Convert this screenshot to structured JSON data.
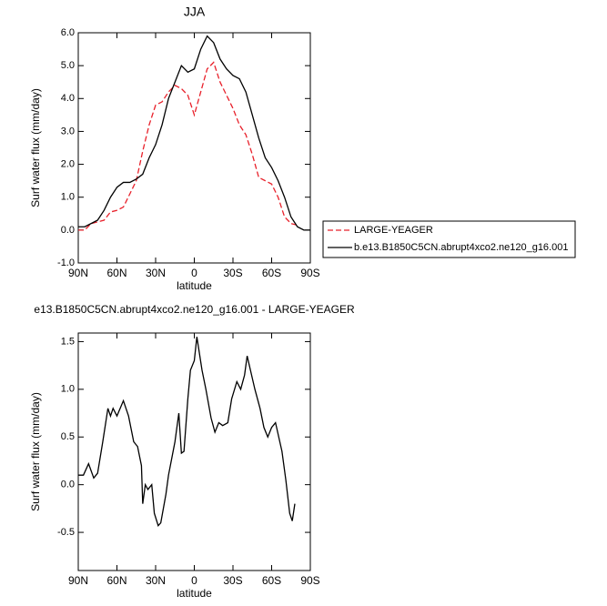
{
  "chart_data": [
    {
      "type": "line",
      "title": "JJA",
      "xlabel": "latitude",
      "ylabel": "Surf water flux (mm/day)",
      "x": [
        90,
        85,
        80,
        75,
        70,
        65,
        60,
        55,
        50,
        45,
        40,
        35,
        30,
        25,
        20,
        15,
        10,
        5,
        0,
        -5,
        -10,
        -15,
        -20,
        -25,
        -30,
        -35,
        -40,
        -45,
        -50,
        -55,
        -60,
        -65,
        -70,
        -75,
        -80,
        -85,
        -90
      ],
      "series": [
        {
          "name": "LARGE-YEAGER",
          "color": "#e8202a",
          "dashed": true,
          "values": [
            0.0,
            0.0,
            0.2,
            0.25,
            0.3,
            0.55,
            0.6,
            0.7,
            1.1,
            1.5,
            2.4,
            3.2,
            3.8,
            3.9,
            4.2,
            4.4,
            4.3,
            4.1,
            3.5,
            4.2,
            4.9,
            5.1,
            4.5,
            4.1,
            3.7,
            3.2,
            2.9,
            2.3,
            1.6,
            1.5,
            1.4,
            1.0,
            0.4,
            0.2,
            0.15,
            null,
            null
          ]
        },
        {
          "name": "b.e13.B1850C5CN.abrupt4xco2.ne120_g16.001",
          "color": "#000000",
          "dashed": false,
          "values": [
            0.1,
            0.1,
            0.2,
            0.3,
            0.6,
            1.0,
            1.3,
            1.45,
            1.45,
            1.55,
            1.7,
            2.2,
            2.6,
            3.2,
            4.0,
            4.5,
            5.0,
            4.8,
            4.9,
            5.5,
            5.9,
            5.7,
            5.2,
            4.9,
            4.7,
            4.6,
            4.2,
            3.5,
            2.8,
            2.2,
            1.9,
            1.5,
            1.0,
            0.4,
            0.1,
            0.0,
            0.0
          ]
        }
      ],
      "xlim": [
        90,
        -90
      ],
      "xticks": [
        {
          "value": 90,
          "label": "90N"
        },
        {
          "value": 60,
          "label": "60N"
        },
        {
          "value": 30,
          "label": "30N"
        },
        0,
        {
          "value": -30,
          "label": "30S"
        },
        {
          "value": -60,
          "label": "60S"
        },
        {
          "value": -90,
          "label": "90S"
        }
      ],
      "ylim": [
        -1,
        6
      ],
      "yticks": [
        {
          "value": -1,
          "label": "-1.0"
        },
        {
          "value": 0,
          "label": "0.0"
        },
        {
          "value": 1,
          "label": "1.0"
        },
        {
          "value": 2,
          "label": "2.0"
        },
        {
          "value": 3,
          "label": "3.0"
        },
        {
          "value": 4,
          "label": "4.0"
        },
        {
          "value": 5,
          "label": "5.0"
        },
        {
          "value": 6,
          "label": "6.0"
        }
      ],
      "legend": "right"
    },
    {
      "type": "line",
      "title": "e13.B1850C5CN.abrupt4xco2.ne120_g16.001 - LARGE-YEAGER",
      "xlabel": "latitude",
      "ylabel": "Surf water flux (mm/day)",
      "x": [
        90,
        86,
        82,
        78,
        75,
        71,
        67,
        65,
        63,
        60,
        55,
        51,
        47,
        44,
        41,
        40,
        38,
        36,
        33,
        31,
        28,
        26,
        22,
        20,
        15,
        12,
        10,
        8,
        5,
        3,
        0,
        -2,
        -6,
        -9,
        -13,
        -16,
        -19,
        -22,
        -26,
        -29,
        -33,
        -36,
        -39,
        -41,
        -47,
        -51,
        -54,
        -57,
        -60,
        -63,
        -68,
        -71,
        -74,
        -76,
        -78
      ],
      "series": [
        {
          "color": "#000000",
          "dashed": false,
          "values": [
            0.1,
            0.1,
            0.22,
            0.07,
            0.12,
            0.45,
            0.8,
            0.72,
            0.8,
            0.72,
            0.88,
            0.72,
            0.45,
            0.4,
            0.2,
            -0.2,
            0.0,
            -0.05,
            0.0,
            -0.3,
            -0.43,
            -0.4,
            -0.1,
            0.1,
            0.45,
            0.75,
            0.33,
            0.35,
            0.9,
            1.2,
            1.3,
            1.55,
            1.2,
            1.0,
            0.7,
            0.55,
            0.65,
            0.62,
            0.65,
            0.9,
            1.08,
            1.0,
            1.15,
            1.35,
            1.0,
            0.8,
            0.6,
            0.5,
            0.6,
            0.65,
            0.35,
            0.05,
            -0.3,
            -0.38,
            -0.2
          ]
        }
      ],
      "xlim": [
        90,
        -90
      ],
      "xticks": [
        {
          "value": 90,
          "label": "90N"
        },
        {
          "value": 60,
          "label": "60N"
        },
        {
          "value": 30,
          "label": "30N"
        },
        0,
        {
          "value": -30,
          "label": "30S"
        },
        {
          "value": -60,
          "label": "60S"
        },
        {
          "value": -90,
          "label": "90S"
        }
      ],
      "ylim": [
        -0.9,
        1.59
      ],
      "yticks": [
        -0.5,
        {
          "value": 0,
          "label": "0.0"
        },
        0.5,
        {
          "value": 1,
          "label": "1.0"
        },
        1.5
      ]
    }
  ]
}
